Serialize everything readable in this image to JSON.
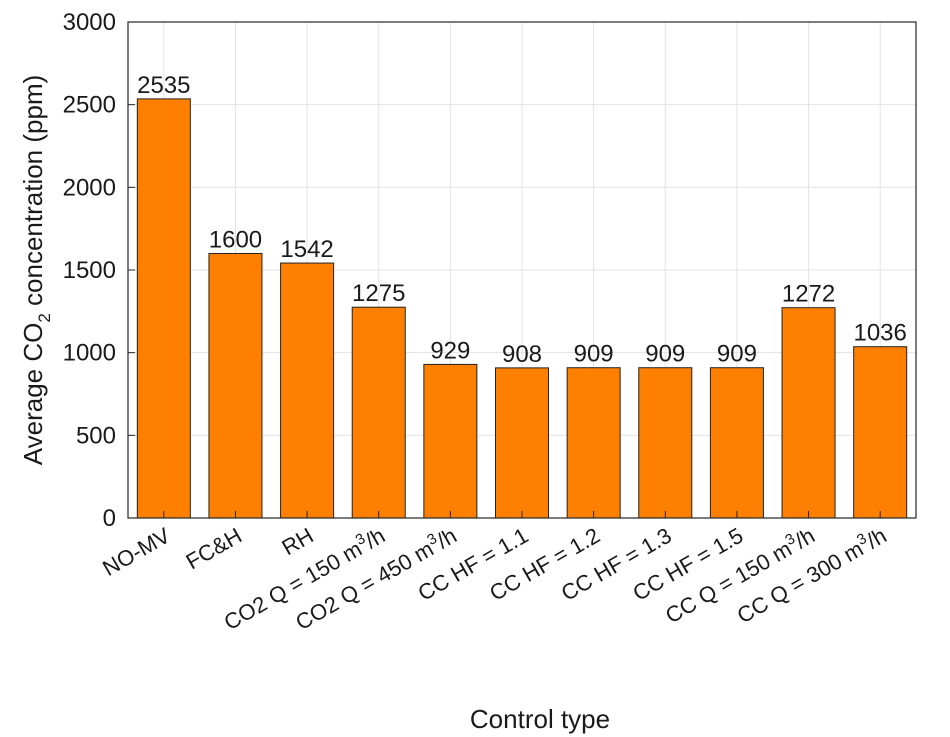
{
  "chart_data": {
    "type": "bar",
    "xlabel": "Control type",
    "ylabel": "Average CO$2$ concentration (ppm)",
    "ylabel_parts": {
      "pre": "Average CO",
      "sub": "2",
      "post": " concentration (ppm)"
    },
    "ylim": [
      0,
      3000
    ],
    "yticks": [
      "0",
      "500",
      "1000",
      "1500",
      "2000",
      "2500",
      "3000"
    ],
    "grid": true,
    "bar_color": "#ff8000",
    "categories": [
      {
        "label": "NO-MV",
        "text": "NO-MV"
      },
      {
        "label": "FC&H",
        "text": "FC&H"
      },
      {
        "label": "RH",
        "text": "RH"
      },
      {
        "label": "CO2 Q = 150 m3/h",
        "pre": "CO2 Q = 150 m",
        "sup": "3",
        "post": "/h"
      },
      {
        "label": "CO2 Q = 450 m3/h",
        "pre": "CO2 Q = 450 m",
        "sup": "3",
        "post": "/h"
      },
      {
        "label": "CC HF = 1.1",
        "text": "CC HF = 1.1"
      },
      {
        "label": "CC HF = 1.2",
        "text": "CC HF = 1.2"
      },
      {
        "label": "CC HF = 1.3",
        "text": "CC HF = 1.3"
      },
      {
        "label": "CC HF = 1.5",
        "text": "CC HF = 1.5"
      },
      {
        "label": "CC Q = 150 m3/h",
        "pre": "CC Q = 150 m",
        "sup": "3",
        "post": "/h"
      },
      {
        "label": "CC Q = 300 m3/h",
        "pre": "CC Q = 300 m",
        "sup": "3",
        "post": "/h"
      }
    ],
    "values": [
      2535,
      1600,
      1542,
      1275,
      929,
      908,
      909,
      909,
      909,
      1272,
      1036
    ],
    "data_labels": [
      "2535",
      "1600",
      "1542",
      "1275",
      "929",
      "908",
      "909",
      "909",
      "909",
      "1272",
      "1036"
    ]
  }
}
